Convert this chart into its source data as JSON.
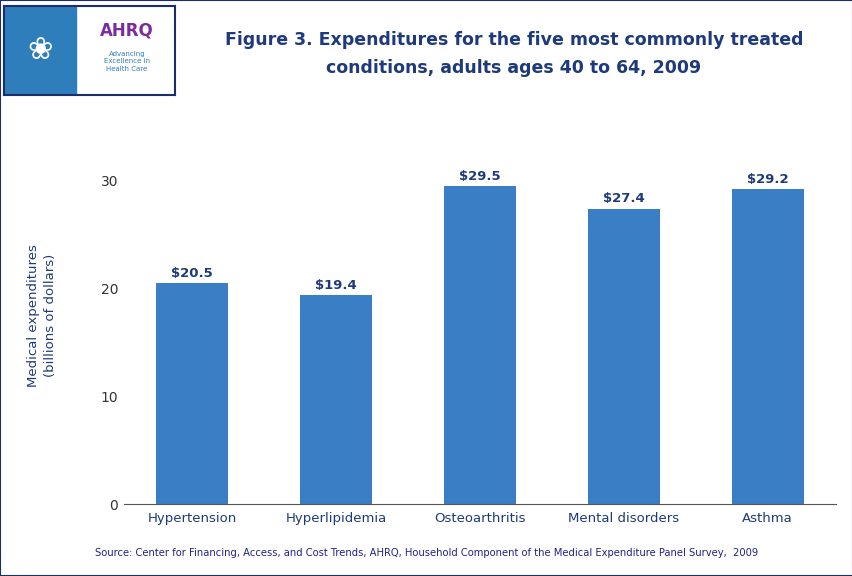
{
  "categories": [
    "Hypertension",
    "Hyperlipidemia",
    "Osteoarthritis",
    "Mental disorders",
    "Asthma"
  ],
  "values": [
    20.5,
    19.4,
    29.5,
    27.4,
    29.2
  ],
  "labels": [
    "$20.5",
    "$19.4",
    "$29.5",
    "$27.4",
    "$29.2"
  ],
  "bar_color": "#3A7EC6",
  "title_line1": "Figure 3. Expenditures for the five most commonly treated",
  "title_line2": "conditions, adults ages 40 to 64, 2009",
  "title_color": "#1F3A7A",
  "ylabel_line1": "Medical expenditures",
  "ylabel_line2": "(billions of dollars)",
  "ylabel_color": "#1F3A7A",
  "xlabel_color": "#1F3A7A",
  "label_color": "#1F3A7A",
  "tick_color": "#333333",
  "ylim": [
    0,
    35
  ],
  "yticks": [
    0,
    10,
    20,
    30
  ],
  "source_text": "Source: Center for Financing, Access, and Cost Trends, AHRQ, Household Component of the Medical Expenditure Panel Survey,  2009",
  "header_bar_color": "#1A2E6E",
  "separator_color": "#1A2E6E",
  "background_color": "#FFFFFF",
  "logo_bg_color": "#2E7EBB",
  "logo_border_color": "#1A2E6E"
}
